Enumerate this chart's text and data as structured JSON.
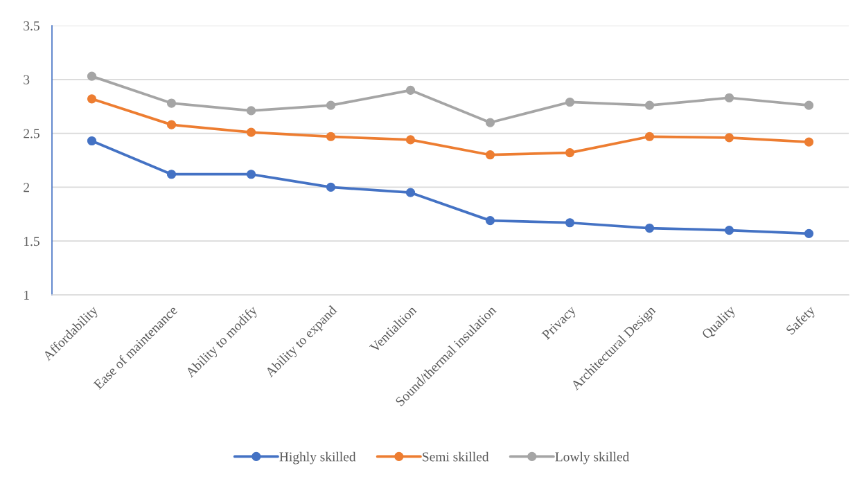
{
  "chart_data": {
    "type": "line",
    "categories": [
      "Affordability",
      "Ease of maintenance",
      "Ability to modify",
      "Ability to expand",
      "Ventialtion",
      "Sound/thermal insulation",
      "Privacy",
      "Architectural Design",
      "Quality",
      "Safety"
    ],
    "series": [
      {
        "name": "Highly skilled",
        "color": "#4472c4",
        "values": [
          2.43,
          2.12,
          2.12,
          2.0,
          1.95,
          1.69,
          1.67,
          1.62,
          1.6,
          1.57
        ]
      },
      {
        "name": "Semi skilled",
        "color": "#ed7d31",
        "values": [
          2.82,
          2.58,
          2.51,
          2.47,
          2.44,
          2.3,
          2.32,
          2.47,
          2.46,
          2.42
        ]
      },
      {
        "name": "Lowly skilled",
        "color": "#a5a5a5",
        "values": [
          3.03,
          2.78,
          2.71,
          2.76,
          2.9,
          2.6,
          2.79,
          2.76,
          2.83,
          2.76
        ]
      }
    ],
    "ylim": [
      1,
      3.5
    ],
    "yticks": [
      1,
      1.5,
      2,
      2.5,
      3,
      3.5
    ],
    "grid": "y",
    "legend": "bottom",
    "marker": "circle",
    "line_style": "solid"
  }
}
